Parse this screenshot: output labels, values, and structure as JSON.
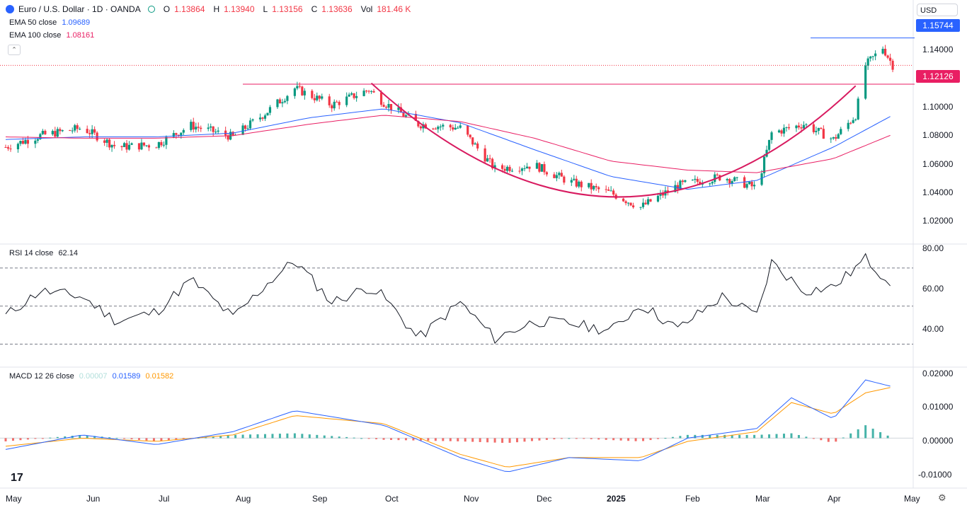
{
  "header": {
    "symbol_title": "Euro / U.S. Dollar · 1D · OANDA",
    "ohlc": [
      {
        "key": "O",
        "value": "1.13864"
      },
      {
        "key": "H",
        "value": "1.13940"
      },
      {
        "key": "L",
        "value": "1.13156"
      },
      {
        "key": "C",
        "value": "1.13636"
      },
      {
        "key": "Vol",
        "value": "181.46 K"
      }
    ],
    "currency": "USD"
  },
  "indicators": {
    "ema50": {
      "label": "EMA 50 close",
      "value": "1.09689",
      "color": "#2962ff"
    },
    "ema100": {
      "label": "EMA 100 close",
      "value": "1.08161",
      "color": "#e91e63"
    },
    "rsi": {
      "label": "RSI 14 close",
      "value": "62.14"
    },
    "macd": {
      "label": "MACD 12 26 close",
      "hist": "0.00007",
      "macd": "0.01589",
      "signal": "0.01582"
    }
  },
  "price_labels": {
    "resistance_high": "1.15744",
    "support_line": "1.12126"
  },
  "colors": {
    "up": "#089981",
    "down": "#f23645",
    "ema50": "#2962ff",
    "ema100": "#e91e63",
    "cup": "#d81b60",
    "level_high": "#2962ff",
    "level_support": "#e91e63",
    "macd_line": "#2962ff",
    "signal_line": "#ff9800",
    "rsi_line": "#131722"
  },
  "chart_data": [
    {
      "type": "candlestick",
      "title": "Euro / U.S. Dollar · 1D · OANDA",
      "x_tick_labels": [
        "May",
        "Jun",
        "Jul",
        "Aug",
        "Sep",
        "Oct",
        "Nov",
        "Dec",
        "2025",
        "Feb",
        "Mar",
        "Apr",
        "May"
      ],
      "y_tick_labels": [
        "1.02000",
        "1.04000",
        "1.06000",
        "1.08000",
        "1.10000",
        "1.14000"
      ],
      "ylim": [
        1.01,
        1.165
      ],
      "close_series": {
        "x": [
          "2024-05-01",
          "2024-05-15",
          "2024-06-01",
          "2024-06-15",
          "2024-07-01",
          "2024-07-15",
          "2024-08-01",
          "2024-08-15",
          "2024-08-26",
          "2024-09-10",
          "2024-09-25",
          "2024-10-01",
          "2024-10-15",
          "2024-11-01",
          "2024-11-15",
          "2024-12-01",
          "2024-12-15",
          "2025-01-01",
          "2025-01-13",
          "2025-01-28",
          "2025-02-15",
          "2025-03-01",
          "2025-03-07",
          "2025-03-20",
          "2025-04-01",
          "2025-04-10",
          "2025-04-14",
          "2025-04-21",
          "2025-04-25"
        ],
        "y": [
          1.072,
          1.081,
          1.087,
          1.072,
          1.074,
          1.089,
          1.08,
          1.1,
          1.118,
          1.105,
          1.117,
          1.107,
          1.09,
          1.087,
          1.055,
          1.058,
          1.045,
          1.036,
          1.025,
          1.042,
          1.049,
          1.04,
          1.083,
          1.09,
          1.078,
          1.097,
          1.136,
          1.15,
          1.136
        ]
      },
      "series": [
        {
          "name": "EMA 50 close",
          "x": [
            "2024-05-01",
            "2024-06-01",
            "2024-07-01",
            "2024-08-01",
            "2024-09-01",
            "2024-10-01",
            "2024-11-01",
            "2024-12-01",
            "2025-01-01",
            "2025-02-01",
            "2025-03-01",
            "2025-04-01",
            "2025-04-25"
          ],
          "y": [
            1.078,
            1.08,
            1.08,
            1.083,
            1.095,
            1.102,
            1.091,
            1.07,
            1.049,
            1.039,
            1.046,
            1.072,
            1.097
          ]
        },
        {
          "name": "EMA 100 close",
          "x": [
            "2024-05-01",
            "2024-06-01",
            "2024-07-01",
            "2024-08-01",
            "2024-09-01",
            "2024-10-01",
            "2024-11-01",
            "2024-12-01",
            "2025-01-01",
            "2025-02-01",
            "2025-03-01",
            "2025-04-01",
            "2025-04-25"
          ],
          "y": [
            1.08,
            1.079,
            1.079,
            1.081,
            1.09,
            1.097,
            1.092,
            1.079,
            1.061,
            1.054,
            1.052,
            1.063,
            1.082
          ]
        }
      ],
      "levels": [
        1.15744,
        1.12126
      ]
    },
    {
      "type": "line",
      "title": "RSI 14 close",
      "y_tick_labels": [
        "40.00",
        "60.00",
        "80.00"
      ],
      "ylim": [
        25,
        80
      ],
      "bands": [
        30,
        50,
        70
      ],
      "series": [
        {
          "name": "RSI 14 close",
          "x": [
            "2024-05-01",
            "2024-05-15",
            "2024-06-01",
            "2024-06-15",
            "2024-07-01",
            "2024-07-15",
            "2024-08-01",
            "2024-08-15",
            "2024-08-26",
            "2024-09-10",
            "2024-09-25",
            "2024-10-01",
            "2024-10-15",
            "2024-11-01",
            "2024-11-15",
            "2024-12-01",
            "2024-12-15",
            "2025-01-01",
            "2025-01-13",
            "2025-01-28",
            "2025-02-15",
            "2025-03-01",
            "2025-03-07",
            "2025-03-20",
            "2025-04-01",
            "2025-04-10",
            "2025-04-14",
            "2025-04-21",
            "2025-04-25"
          ],
          "y": [
            45,
            58,
            55,
            42,
            47,
            64,
            44,
            62,
            74,
            52,
            60,
            55,
            33,
            52,
            33,
            42,
            41,
            37,
            51,
            38,
            55,
            45,
            73,
            58,
            60,
            70,
            75,
            66,
            62.14
          ]
        }
      ]
    },
    {
      "type": "line",
      "title": "MACD 12 26 close",
      "y_tick_labels": [
        "-0.01000",
        "0.00000",
        "0.01000",
        "0.02000"
      ],
      "ylim": [
        -0.0115,
        0.02
      ],
      "series": [
        {
          "name": "MACD",
          "x": [
            "2024-05-01",
            "2024-06-01",
            "2024-07-01",
            "2024-08-01",
            "2024-08-26",
            "2024-10-01",
            "2024-11-01",
            "2024-11-20",
            "2024-12-15",
            "2025-01-13",
            "2025-02-01",
            "2025-03-01",
            "2025-03-15",
            "2025-04-01",
            "2025-04-14",
            "2025-04-25"
          ],
          "y": [
            -0.0035,
            0.001,
            -0.002,
            0.002,
            0.0085,
            0.004,
            -0.006,
            -0.0105,
            -0.006,
            -0.007,
            0.0,
            0.003,
            0.0125,
            0.006,
            0.018,
            0.01589
          ]
        },
        {
          "name": "Signal",
          "x": [
            "2024-05-01",
            "2024-06-01",
            "2024-07-01",
            "2024-08-01",
            "2024-08-26",
            "2024-10-01",
            "2024-11-01",
            "2024-11-20",
            "2024-12-15",
            "2025-01-13",
            "2025-02-01",
            "2025-03-01",
            "2025-03-15",
            "2025-04-01",
            "2025-04-14",
            "2025-04-25"
          ],
          "y": [
            -0.0025,
            0.0,
            -0.001,
            0.001,
            0.007,
            0.0045,
            -0.005,
            -0.009,
            -0.006,
            -0.006,
            -0.001,
            0.002,
            0.011,
            0.0075,
            0.014,
            0.01582
          ]
        }
      ]
    }
  ]
}
